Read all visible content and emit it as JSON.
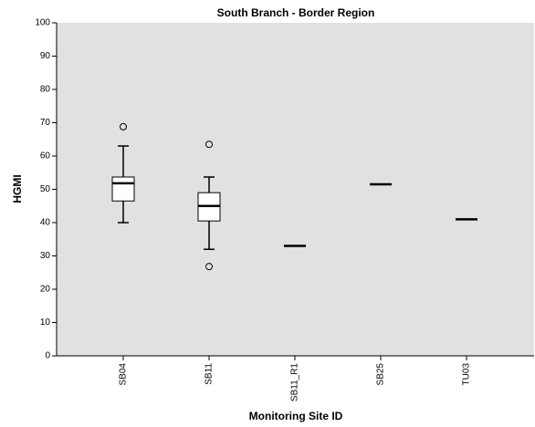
{
  "chart_data": {
    "type": "box",
    "title": "South Branch - Border Region",
    "x_label": "Monitoring Site ID",
    "y_label": "HGMI",
    "categories": [
      "SB04",
      "SB11",
      "SB11_R1",
      "SB25",
      "TU03"
    ],
    "boxes": [
      {
        "whisker_low": 40,
        "q1": 46.5,
        "median": 51.8,
        "q3": 53.7,
        "whisker_high": 63,
        "outliers": [
          68.8
        ]
      },
      {
        "whisker_low": 32,
        "q1": 40.5,
        "median": 45,
        "q3": 49,
        "whisker_high": 53.7,
        "outliers": [
          63.5,
          26.8
        ]
      },
      {
        "median": 33
      },
      {
        "median": 51.5
      },
      {
        "median": 41
      }
    ],
    "ylim": [
      0,
      100
    ],
    "yticks": [
      0,
      10,
      20,
      30,
      40,
      50,
      60,
      70,
      80,
      90,
      100
    ],
    "grid": false,
    "color": "#ffffff"
  }
}
